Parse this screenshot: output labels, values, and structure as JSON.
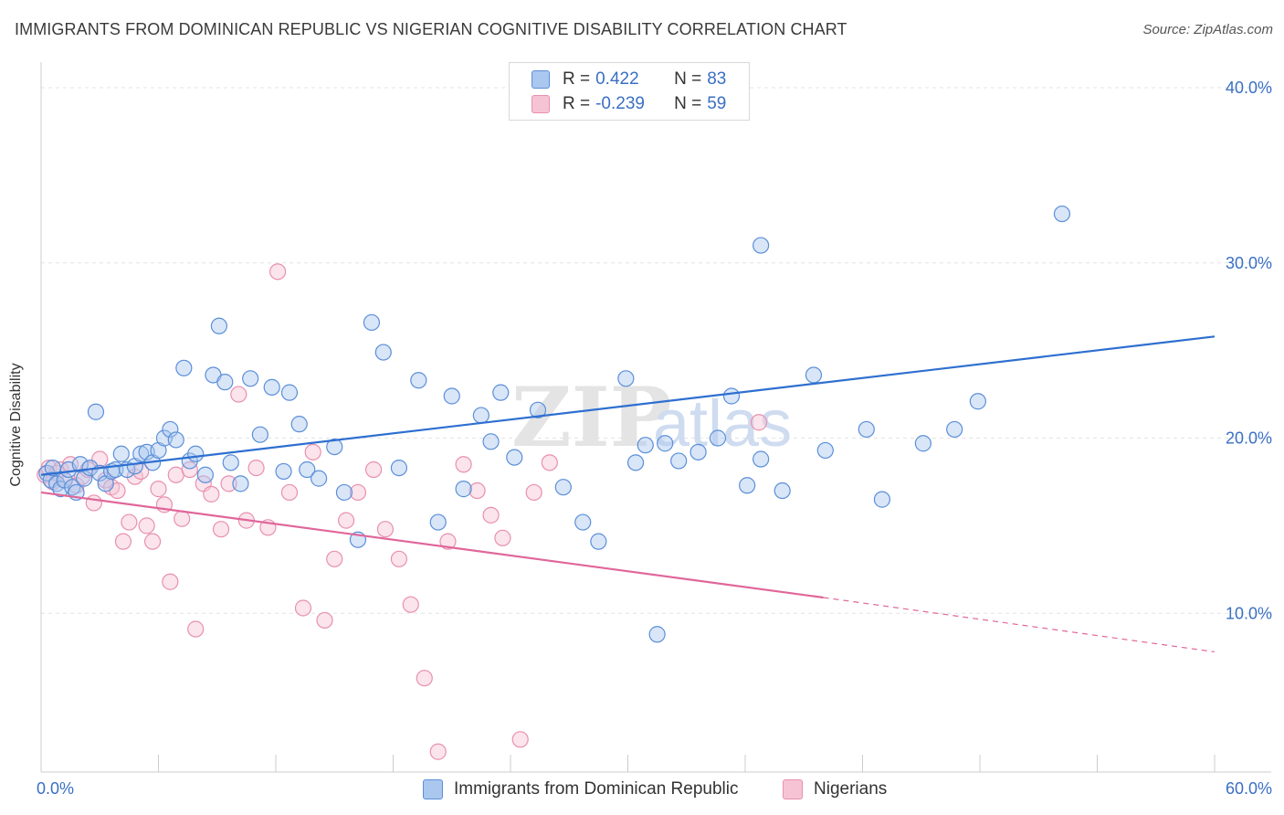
{
  "title": "IMMIGRANTS FROM DOMINICAN REPUBLIC VS NIGERIAN COGNITIVE DISABILITY CORRELATION CHART",
  "source": "Source: ZipAtlas.com",
  "watermark": {
    "zip": "ZIP",
    "atlas": "atlas"
  },
  "legend_top": {
    "r_label": "R =",
    "n_label": "N =",
    "rows": [
      {
        "r": "0.422",
        "n": "83"
      },
      {
        "r": "-0.239",
        "n": "59"
      }
    ]
  },
  "colors": {
    "blue": "#5b8fd8",
    "blue_fill": "#aac7ef",
    "blue_line": "#2e6fd0",
    "pink": "#e890b0",
    "pink_fill": "#f6c3d5",
    "pink_line": "#e0669a",
    "axis_text": "#3a6fc4"
  },
  "chart_data": {
    "type": "scatter",
    "title": "IMMIGRANTS FROM DOMINICAN REPUBLIC VS NIGERIAN COGNITIVE DISABILITY CORRELATION CHART",
    "xlabel": "",
    "ylabel": "Cognitive Disability",
    "xlim": [
      0,
      60
    ],
    "ylim": [
      0,
      40
    ],
    "x_tick_labels": [
      "0.0%",
      "60.0%"
    ],
    "y_ticks": [
      10,
      20,
      30,
      40
    ],
    "y_tick_labels": [
      "10.0%",
      "20.0%",
      "30.0%",
      "40.0%"
    ],
    "grid": true,
    "legend_position": "bottom",
    "series": [
      {
        "name": "Immigrants from Dominican Republic",
        "color": "blue",
        "points": [
          [
            0.3,
            18.0
          ],
          [
            0.5,
            17.6
          ],
          [
            0.6,
            18.3
          ],
          [
            0.8,
            17.4
          ],
          [
            1.0,
            17.1
          ],
          [
            1.2,
            17.6
          ],
          [
            1.4,
            18.2
          ],
          [
            1.6,
            17.2
          ],
          [
            1.8,
            16.9
          ],
          [
            2.0,
            18.5
          ],
          [
            2.2,
            17.7
          ],
          [
            2.5,
            18.3
          ],
          [
            2.8,
            21.5
          ],
          [
            3.0,
            18.0
          ],
          [
            3.3,
            17.4
          ],
          [
            3.6,
            18.1
          ],
          [
            3.8,
            18.2
          ],
          [
            4.1,
            19.1
          ],
          [
            4.4,
            18.2
          ],
          [
            4.8,
            18.4
          ],
          [
            5.1,
            19.1
          ],
          [
            5.4,
            19.2
          ],
          [
            5.7,
            18.6
          ],
          [
            6.0,
            19.3
          ],
          [
            6.3,
            20.0
          ],
          [
            6.6,
            20.5
          ],
          [
            6.9,
            19.9
          ],
          [
            7.3,
            24.0
          ],
          [
            7.6,
            18.7
          ],
          [
            7.9,
            19.1
          ],
          [
            8.4,
            17.9
          ],
          [
            8.8,
            23.6
          ],
          [
            9.1,
            26.4
          ],
          [
            9.4,
            23.2
          ],
          [
            9.7,
            18.6
          ],
          [
            10.2,
            17.4
          ],
          [
            10.7,
            23.4
          ],
          [
            11.2,
            20.2
          ],
          [
            11.8,
            22.9
          ],
          [
            12.4,
            18.1
          ],
          [
            12.7,
            22.6
          ],
          [
            13.2,
            20.8
          ],
          [
            13.6,
            18.2
          ],
          [
            14.2,
            17.7
          ],
          [
            15.0,
            19.5
          ],
          [
            15.5,
            16.9
          ],
          [
            16.2,
            14.2
          ],
          [
            16.9,
            26.6
          ],
          [
            17.5,
            24.9
          ],
          [
            18.3,
            18.3
          ],
          [
            19.3,
            23.3
          ],
          [
            20.3,
            15.2
          ],
          [
            21.0,
            22.4
          ],
          [
            21.6,
            17.1
          ],
          [
            22.5,
            21.3
          ],
          [
            23.0,
            19.8
          ],
          [
            23.5,
            22.6
          ],
          [
            24.2,
            18.9
          ],
          [
            25.4,
            21.6
          ],
          [
            26.7,
            17.2
          ],
          [
            27.7,
            15.2
          ],
          [
            28.5,
            14.1
          ],
          [
            29.9,
            23.4
          ],
          [
            30.4,
            18.6
          ],
          [
            30.9,
            19.6
          ],
          [
            31.5,
            8.8
          ],
          [
            31.9,
            19.7
          ],
          [
            32.6,
            18.7
          ],
          [
            33.6,
            19.2
          ],
          [
            34.6,
            20.0
          ],
          [
            35.3,
            22.4
          ],
          [
            36.1,
            17.3
          ],
          [
            36.8,
            18.8
          ],
          [
            37.9,
            17.0
          ],
          [
            39.5,
            23.6
          ],
          [
            40.1,
            19.3
          ],
          [
            42.2,
            20.5
          ],
          [
            43.0,
            16.5
          ],
          [
            45.1,
            19.7
          ],
          [
            46.7,
            20.5
          ],
          [
            47.9,
            22.1
          ],
          [
            52.2,
            32.8
          ],
          [
            36.8,
            31.0
          ]
        ]
      },
      {
        "name": "Nigerians",
        "color": "pink",
        "points": [
          [
            0.2,
            17.9
          ],
          [
            0.4,
            18.3
          ],
          [
            0.6,
            17.5
          ],
          [
            0.8,
            18.0
          ],
          [
            1.0,
            18.2
          ],
          [
            1.2,
            17.6
          ],
          [
            1.5,
            18.5
          ],
          [
            1.8,
            17.3
          ],
          [
            2.1,
            17.8
          ],
          [
            2.4,
            18.2
          ],
          [
            2.7,
            16.3
          ],
          [
            3.0,
            18.8
          ],
          [
            3.3,
            17.6
          ],
          [
            3.6,
            17.2
          ],
          [
            3.9,
            17.0
          ],
          [
            4.2,
            14.1
          ],
          [
            4.5,
            15.2
          ],
          [
            4.8,
            17.8
          ],
          [
            5.1,
            18.1
          ],
          [
            5.4,
            15.0
          ],
          [
            5.7,
            14.1
          ],
          [
            6.0,
            17.1
          ],
          [
            6.3,
            16.2
          ],
          [
            6.6,
            11.8
          ],
          [
            6.9,
            17.9
          ],
          [
            7.2,
            15.4
          ],
          [
            7.6,
            18.2
          ],
          [
            7.9,
            9.1
          ],
          [
            8.3,
            17.4
          ],
          [
            8.7,
            16.8
          ],
          [
            9.2,
            14.8
          ],
          [
            9.6,
            17.4
          ],
          [
            10.1,
            22.5
          ],
          [
            10.5,
            15.3
          ],
          [
            11.0,
            18.3
          ],
          [
            11.6,
            14.9
          ],
          [
            12.1,
            29.5
          ],
          [
            12.7,
            16.9
          ],
          [
            13.4,
            10.3
          ],
          [
            13.9,
            19.2
          ],
          [
            14.5,
            9.6
          ],
          [
            15.0,
            13.1
          ],
          [
            15.6,
            15.3
          ],
          [
            16.2,
            16.9
          ],
          [
            17.0,
            18.2
          ],
          [
            17.6,
            14.8
          ],
          [
            18.3,
            13.1
          ],
          [
            18.9,
            10.5
          ],
          [
            19.6,
            6.3
          ],
          [
            20.3,
            2.1
          ],
          [
            20.8,
            14.1
          ],
          [
            21.6,
            18.5
          ],
          [
            22.3,
            17.0
          ],
          [
            23.0,
            15.6
          ],
          [
            23.6,
            14.3
          ],
          [
            24.5,
            2.8
          ],
          [
            25.2,
            16.9
          ],
          [
            26.0,
            18.6
          ],
          [
            36.7,
            20.9
          ]
        ]
      }
    ],
    "trendlines": [
      {
        "series": "Immigrants from Dominican Republic",
        "from": [
          0,
          17.9
        ],
        "to": [
          60,
          25.8
        ],
        "style": "solid"
      },
      {
        "series": "Nigerians",
        "from": [
          0,
          16.9
        ],
        "to": [
          40,
          10.9
        ],
        "style": "solid"
      },
      {
        "series": "Nigerians",
        "from": [
          40,
          10.9
        ],
        "to": [
          60,
          7.8
        ],
        "style": "dashed"
      }
    ]
  },
  "legend_bottom": [
    {
      "label": "Immigrants from Dominican Republic",
      "color": "blue"
    },
    {
      "label": "Nigerians",
      "color": "pink"
    }
  ]
}
